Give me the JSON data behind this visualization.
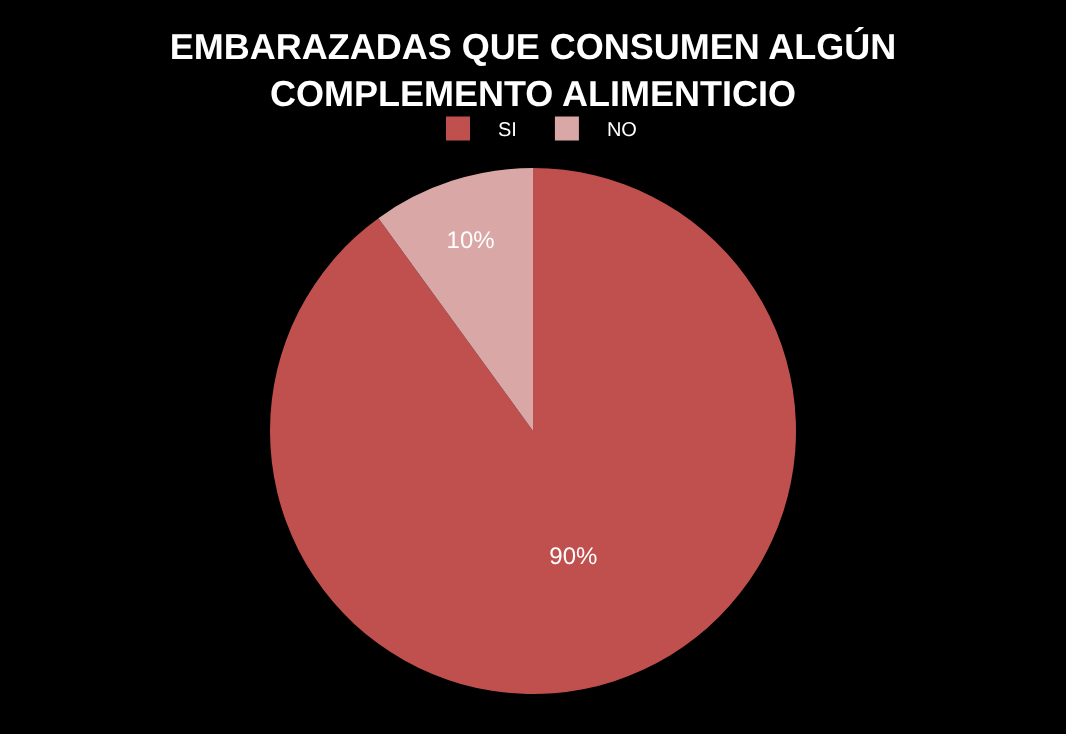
{
  "chart_data": {
    "type": "pie",
    "title": "EMBARAZADAS QUE CONSUMEN ALGÚN\nCOMPLEMENTO ALIMENTICIO",
    "categories": [
      "SI",
      "NO"
    ],
    "values": [
      90,
      10
    ],
    "colors": [
      "#c0504d",
      "#d9a7a5"
    ],
    "value_labels": [
      "90%",
      "10%"
    ],
    "legend": "top"
  }
}
